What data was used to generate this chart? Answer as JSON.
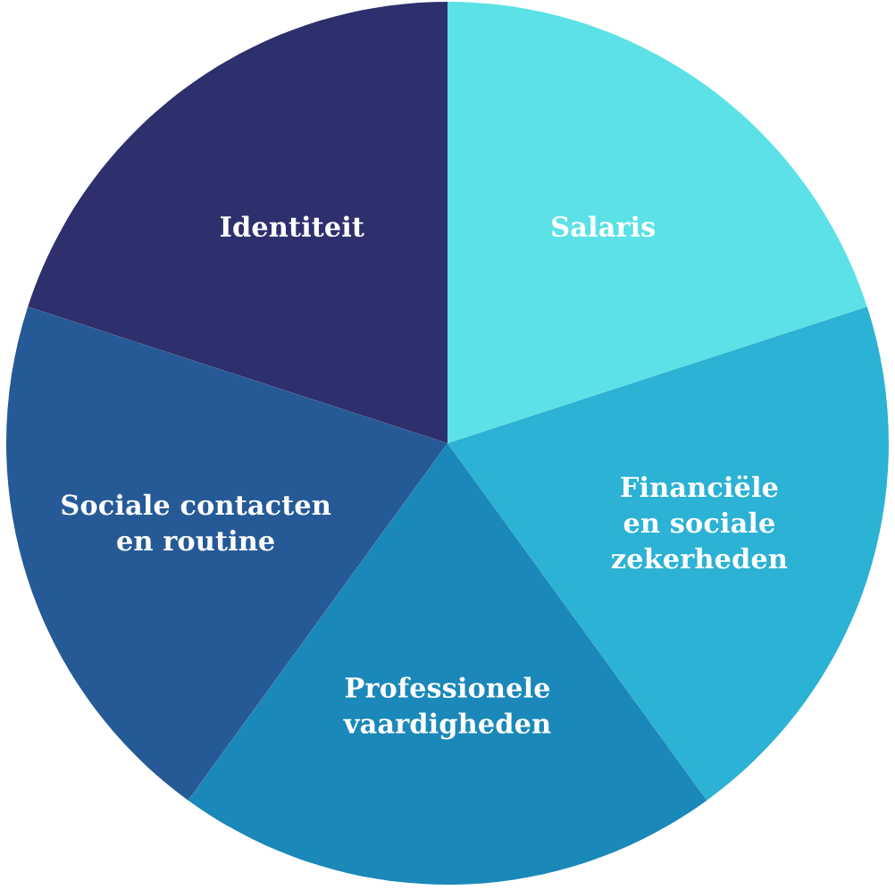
{
  "chart_data": {
    "type": "pie",
    "categories": [
      "Salaris",
      "Financiële\nen sociale\nzekerheden",
      "Professionele\nvaardigheden",
      "Sociale contacten\nen routine",
      "Identiteit"
    ],
    "values": [
      20,
      20,
      20,
      20,
      20
    ],
    "colors": [
      "#5ce1e6",
      "#2bb2d4",
      "#1a88b8",
      "#255a96",
      "#2e2f6d"
    ]
  }
}
